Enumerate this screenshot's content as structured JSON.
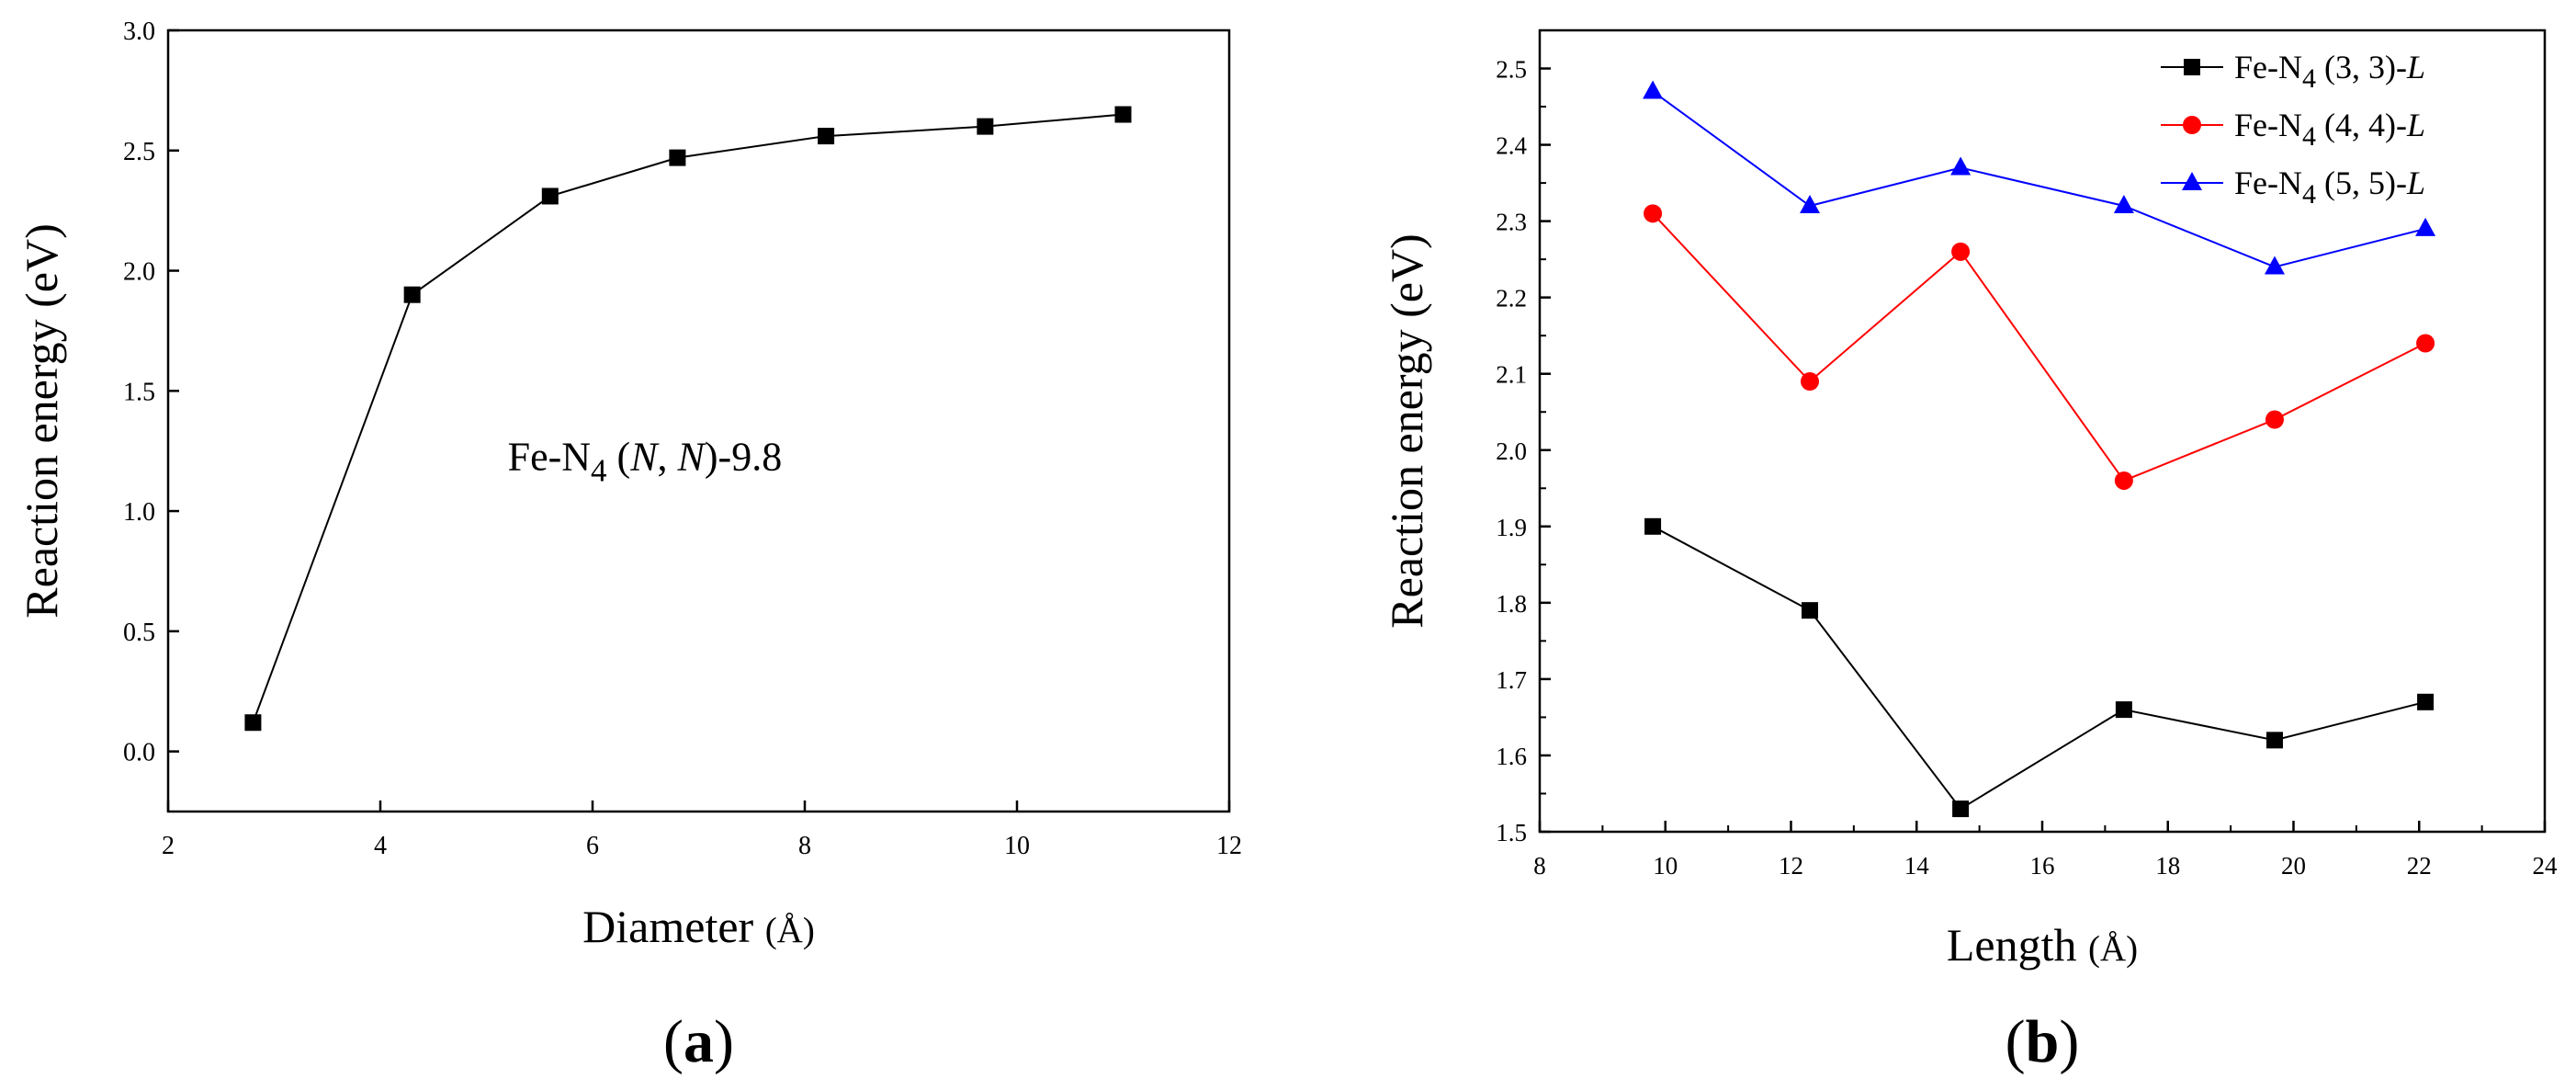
{
  "chart_data": [
    {
      "panel": "a",
      "panel_label": "(a)",
      "type": "line",
      "xlabel": "Diameter",
      "xlabel_unit": "(Å)",
      "ylabel": "Reaction energy (eV)",
      "xlim": [
        2,
        12
      ],
      "ylim": [
        -0.25,
        3.0
      ],
      "xticks": [
        2,
        4,
        6,
        8,
        10,
        12
      ],
      "yticks": [
        0.0,
        0.5,
        1.0,
        1.5,
        2.0,
        2.5,
        3.0
      ],
      "annotation": {
        "base": "Fe-N",
        "sub": "4",
        "rest_open": " (",
        "italic1": "N",
        "sep": ", ",
        "italic2": "N",
        "rest_close": ")-9.8"
      },
      "series": [
        {
          "name": "Fe-N4 (N, N)-9.8",
          "color": "#000000",
          "marker": "square",
          "x": [
            2.8,
            4.3,
            5.6,
            6.8,
            8.2,
            9.7,
            11.0
          ],
          "y": [
            0.12,
            1.9,
            2.31,
            2.47,
            2.56,
            2.6,
            2.65
          ]
        }
      ]
    },
    {
      "panel": "b",
      "panel_label": "(b)",
      "type": "line",
      "xlabel": "Length",
      "xlabel_unit": "(Å)",
      "ylabel": "Reaction energy (eV)",
      "xlim": [
        8,
        24
      ],
      "ylim": [
        1.5,
        2.55
      ],
      "xticks": [
        8,
        10,
        12,
        14,
        16,
        18,
        20,
        22,
        24
      ],
      "yticks": [
        1.5,
        1.6,
        1.7,
        1.8,
        1.9,
        2.0,
        2.1,
        2.2,
        2.3,
        2.4,
        2.5
      ],
      "legend_position": "top-right",
      "series": [
        {
          "legend": {
            "base": "Fe-N",
            "sub": "4",
            "rest": " (3, 3)-",
            "italic": "L"
          },
          "color": "#000000",
          "marker": "square",
          "x": [
            9.8,
            12.3,
            14.7,
            17.3,
            19.7,
            22.1
          ],
          "y": [
            1.9,
            1.79,
            1.53,
            1.66,
            1.62,
            1.67
          ]
        },
        {
          "legend": {
            "base": "Fe-N",
            "sub": "4",
            "rest": " (4, 4)-",
            "italic": "L"
          },
          "color": "#ff0000",
          "marker": "circle",
          "x": [
            9.8,
            12.3,
            14.7,
            17.3,
            19.7,
            22.1
          ],
          "y": [
            2.31,
            2.09,
            2.26,
            1.96,
            2.04,
            2.14
          ]
        },
        {
          "legend": {
            "base": "Fe-N",
            "sub": "4",
            "rest": " (5, 5)-",
            "italic": "L"
          },
          "color": "#0000ff",
          "marker": "triangle",
          "x": [
            9.8,
            12.3,
            14.7,
            17.3,
            19.7,
            22.1
          ],
          "y": [
            2.47,
            2.32,
            2.37,
            2.32,
            2.24,
            2.29
          ]
        }
      ]
    }
  ]
}
